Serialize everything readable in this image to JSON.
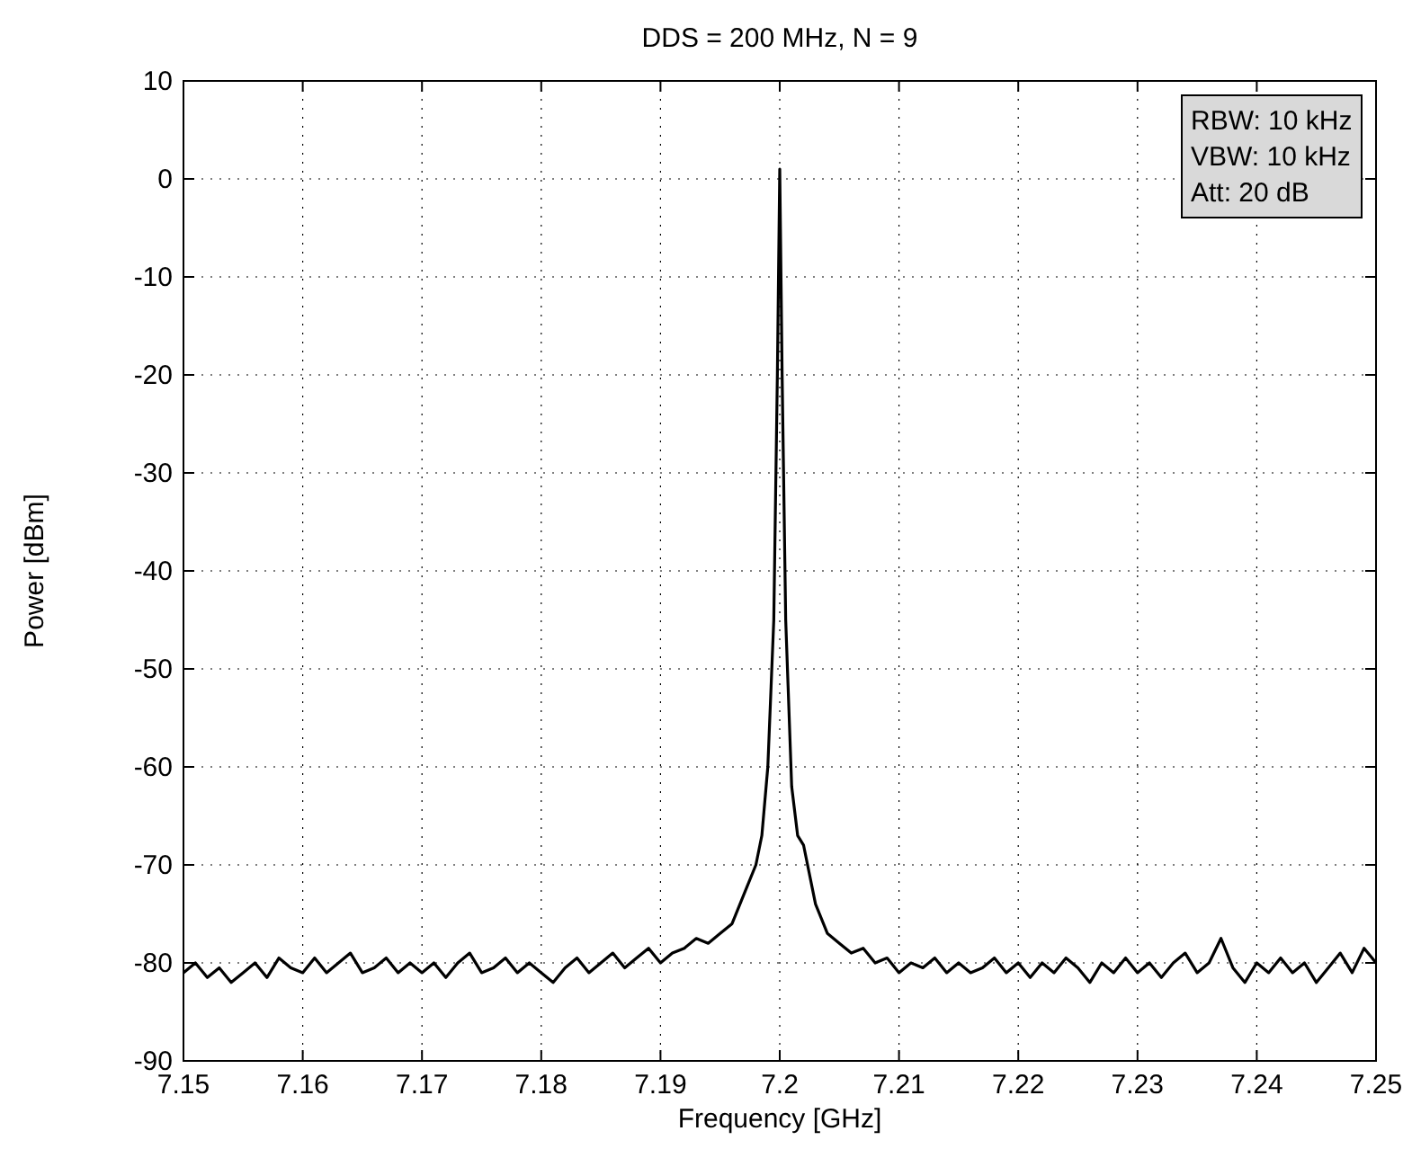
{
  "chart_data": {
    "type": "line",
    "title": "DDS = 200 MHz, N = 9",
    "xlabel": "Frequency [GHz]",
    "ylabel": "Power [dBm]",
    "annotations": [
      "RBW: 10 kHz",
      "VBW: 10 kHz",
      "Att: 20 dB"
    ],
    "xlim": [
      7.15,
      7.25
    ],
    "xticks": [
      7.15,
      7.16,
      7.17,
      7.18,
      7.19,
      7.2,
      7.21,
      7.22,
      7.23,
      7.24,
      7.25
    ],
    "ylim": [
      -90,
      10
    ],
    "yticks": [
      -90,
      -80,
      -70,
      -60,
      -50,
      -40,
      -30,
      -20,
      -10,
      0,
      10
    ],
    "grid": true,
    "line_style": "solid",
    "marker": "none",
    "series": [
      {
        "color": "#000000",
        "x": [
          7.15,
          7.151,
          7.152,
          7.153,
          7.154,
          7.155,
          7.156,
          7.157,
          7.158,
          7.159,
          7.16,
          7.161,
          7.162,
          7.163,
          7.164,
          7.165,
          7.166,
          7.167,
          7.168,
          7.169,
          7.17,
          7.171,
          7.172,
          7.173,
          7.174,
          7.175,
          7.176,
          7.177,
          7.178,
          7.179,
          7.18,
          7.181,
          7.182,
          7.183,
          7.184,
          7.185,
          7.186,
          7.187,
          7.188,
          7.189,
          7.19,
          7.191,
          7.192,
          7.193,
          7.194,
          7.195,
          7.196,
          7.197,
          7.198,
          7.1985,
          7.199,
          7.1995,
          7.1998,
          7.2,
          7.2002,
          7.2005,
          7.201,
          7.2015,
          7.202,
          7.203,
          7.204,
          7.205,
          7.206,
          7.207,
          7.208,
          7.209,
          7.21,
          7.211,
          7.212,
          7.213,
          7.214,
          7.215,
          7.216,
          7.217,
          7.218,
          7.219,
          7.22,
          7.221,
          7.222,
          7.223,
          7.224,
          7.225,
          7.226,
          7.227,
          7.228,
          7.229,
          7.23,
          7.231,
          7.232,
          7.233,
          7.234,
          7.235,
          7.236,
          7.237,
          7.238,
          7.239,
          7.24,
          7.241,
          7.242,
          7.243,
          7.244,
          7.245,
          7.246,
          7.247,
          7.248,
          7.249,
          7.25
        ],
        "values": [
          -81,
          -80,
          -81.5,
          -80.5,
          -82,
          -81,
          -80,
          -81.5,
          -79.5,
          -80.5,
          -81,
          -79.5,
          -81,
          -80,
          -79,
          -81,
          -80.5,
          -79.5,
          -81,
          -80,
          -81,
          -80,
          -81.5,
          -80,
          -79,
          -81,
          -80.5,
          -79.5,
          -81,
          -80,
          -81,
          -82,
          -80.5,
          -79.5,
          -81,
          -80,
          -79,
          -80.5,
          -79.5,
          -78.5,
          -80,
          -79,
          -78.5,
          -77.5,
          -78,
          -77,
          -76,
          -73,
          -70,
          -67,
          -60,
          -45,
          -20,
          1,
          -20,
          -45,
          -62,
          -67,
          -68,
          -74,
          -77,
          -78,
          -79,
          -78.5,
          -80,
          -79.5,
          -81,
          -80,
          -80.5,
          -79.5,
          -81,
          -80,
          -81,
          -80.5,
          -79.5,
          -81,
          -80,
          -81.5,
          -80,
          -81,
          -79.5,
          -80.5,
          -82,
          -80,
          -81,
          -79.5,
          -81,
          -80,
          -81.5,
          -80,
          -79,
          -81,
          -80,
          -77.5,
          -80.5,
          -82,
          -80,
          -81,
          -79.5,
          -81,
          -80,
          -82,
          -80.5,
          -79,
          -81,
          -78.5,
          -80
        ]
      }
    ]
  }
}
